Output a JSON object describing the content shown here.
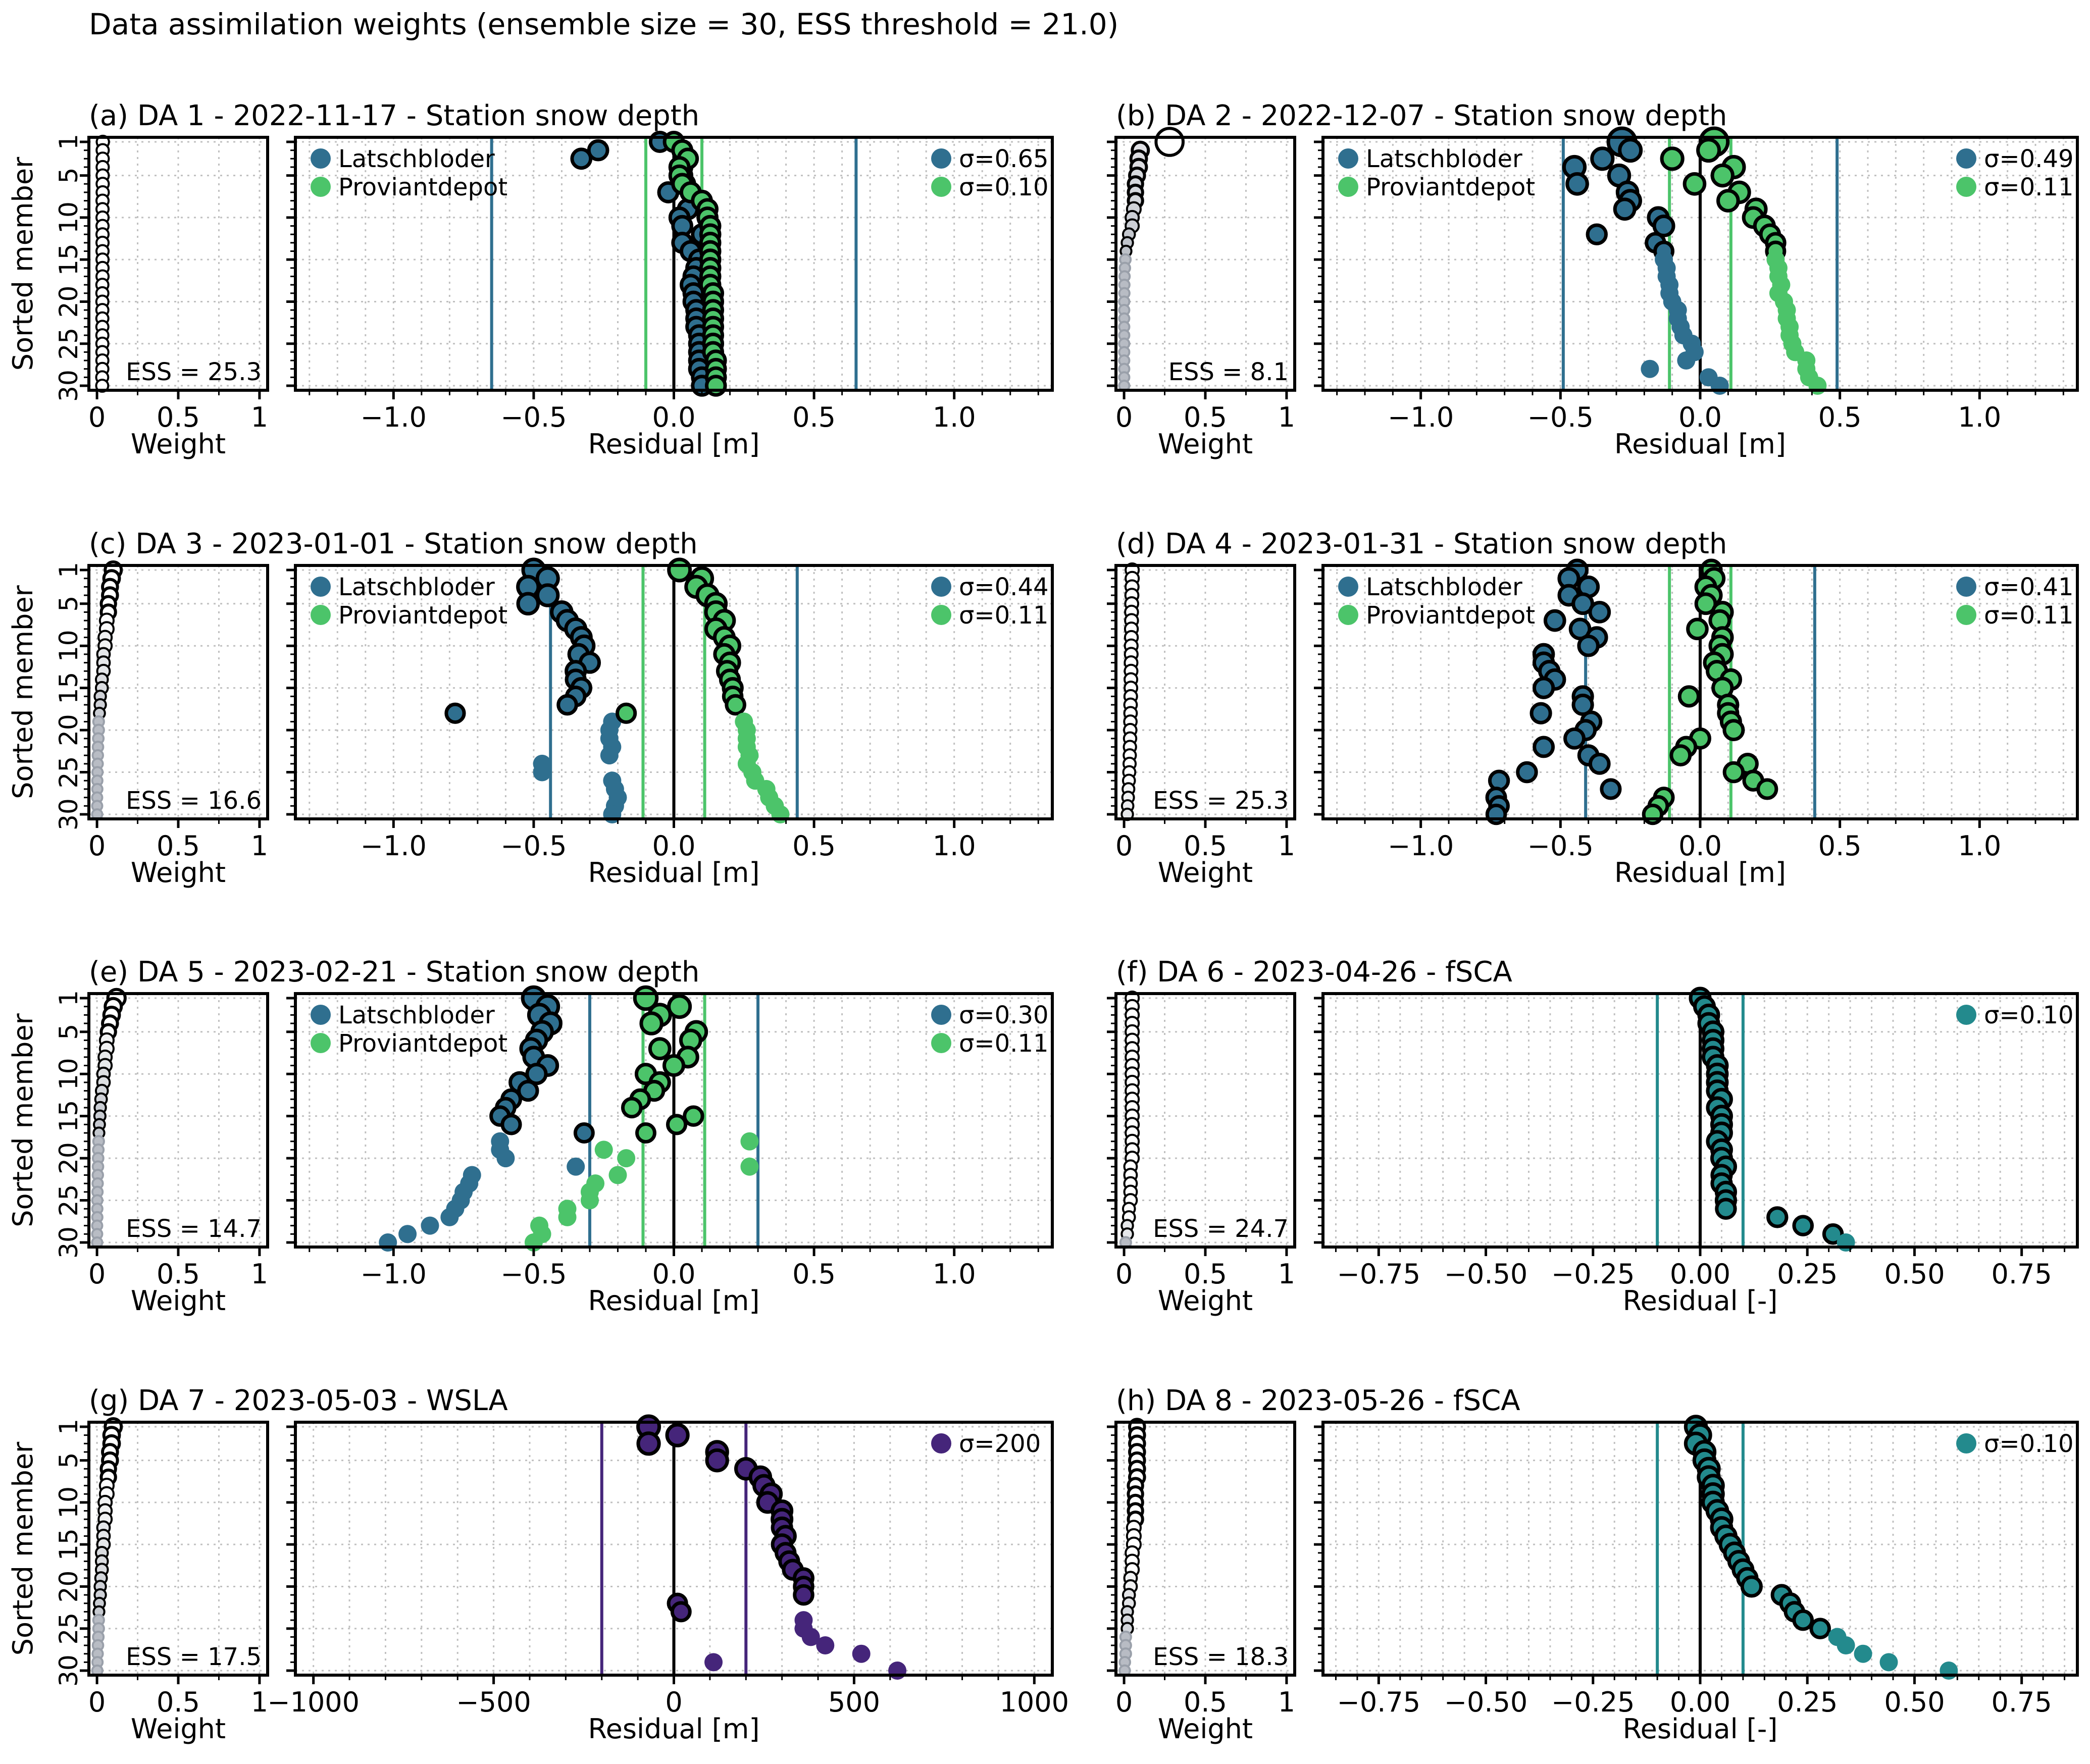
{
  "suptitle": "Data assimilation weights (ensemble size = 30, ESS threshold = 21.0)",
  "common": {
    "ylabel": "Sorted member",
    "weight_xlabel": "Weight",
    "ytick_labels": [
      "1",
      "5",
      "10",
      "15",
      "20",
      "25",
      "30"
    ],
    "weight_tick_labels": [
      "0",
      "0.5",
      "1"
    ]
  },
  "colors": {
    "latschbloder": "#2f6f8f",
    "proviantdepot": "#4cc46a",
    "fsca": "#238a8d",
    "wsla": "#45257a",
    "weight_low": "#b8bcc4",
    "weight_high": "#ffffff",
    "outline": "#000000",
    "grid": "#c0c0c0"
  },
  "chart_data": [
    {
      "type": "scatter",
      "title": "(a) DA 1 - 2022-11-17 - Station snow depth",
      "xlabel": "Residual [m]",
      "ess_label": "ESS = 25.3",
      "xlim": [
        -1.35,
        1.35
      ],
      "xticks": [
        -1.0,
        -0.5,
        0.0,
        0.5,
        1.0
      ],
      "xtick_labels": [
        "−1.0",
        "−0.5",
        "0.0",
        "0.5",
        "1.0"
      ],
      "series": [
        {
          "name": "Latschbloder",
          "sigma_label": "σ=0.65",
          "sigma": 0.65,
          "color_key": "latschbloder",
          "values": [
            -0.05,
            -0.27,
            -0.33,
            0.03,
            0.03,
            0.04,
            -0.02,
            0.07,
            0.05,
            0.02,
            0.03,
            0.1,
            0.03,
            0.06,
            0.09,
            0.08,
            0.07,
            0.06,
            0.07,
            0.07,
            0.08,
            0.08,
            0.08,
            0.09,
            0.09,
            0.09,
            0.09,
            0.09,
            0.1,
            0.1
          ]
        },
        {
          "name": "Proviantdepot",
          "sigma_label": "σ=0.10",
          "sigma": 0.1,
          "color_key": "proviantdepot",
          "values": [
            0.0,
            0.03,
            0.05,
            0.02,
            0.02,
            0.03,
            0.06,
            0.1,
            0.12,
            0.12,
            0.13,
            0.13,
            0.13,
            0.13,
            0.13,
            0.13,
            0.13,
            0.13,
            0.14,
            0.14,
            0.14,
            0.14,
            0.14,
            0.14,
            0.14,
            0.14,
            0.15,
            0.15,
            0.15,
            0.15
          ]
        }
      ],
      "weights": [
        0.036,
        0.035,
        0.035,
        0.035,
        0.035,
        0.035,
        0.035,
        0.034,
        0.034,
        0.034,
        0.034,
        0.034,
        0.034,
        0.034,
        0.034,
        0.034,
        0.034,
        0.033,
        0.033,
        0.033,
        0.033,
        0.033,
        0.033,
        0.033,
        0.033,
        0.033,
        0.033,
        0.033,
        0.032,
        0.032
      ]
    },
    {
      "type": "scatter",
      "title": "(b) DA 2 - 2022-12-07 - Station snow depth",
      "xlabel": "Residual [m]",
      "ess_label": "ESS = 8.1",
      "xlim": [
        -1.35,
        1.35
      ],
      "xticks": [
        -1.0,
        -0.5,
        0.0,
        0.5,
        1.0
      ],
      "xtick_labels": [
        "−1.0",
        "−0.5",
        "0.0",
        "0.5",
        "1.0"
      ],
      "series": [
        {
          "name": "Latschbloder",
          "sigma_label": "σ=0.49",
          "sigma": 0.49,
          "color_key": "latschbloder",
          "values": [
            -0.28,
            -0.25,
            -0.35,
            -0.45,
            -0.29,
            -0.44,
            -0.26,
            -0.25,
            -0.27,
            -0.15,
            -0.13,
            -0.37,
            -0.16,
            -0.13,
            -0.13,
            -0.12,
            -0.12,
            -0.11,
            -0.11,
            -0.1,
            -0.08,
            -0.08,
            -0.07,
            -0.06,
            -0.03,
            -0.02,
            -0.05,
            -0.18,
            0.03,
            0.07
          ]
        },
        {
          "name": "Proviantdepot",
          "sigma_label": "σ=0.11",
          "sigma": 0.11,
          "color_key": "proviantdepot",
          "values": [
            0.05,
            0.03,
            -0.1,
            0.12,
            0.08,
            -0.02,
            0.14,
            0.1,
            0.2,
            0.19,
            0.23,
            0.25,
            0.27,
            0.27,
            0.27,
            0.28,
            0.28,
            0.29,
            0.28,
            0.3,
            0.31,
            0.31,
            0.32,
            0.32,
            0.33,
            0.34,
            0.38,
            0.38,
            0.39,
            0.42
          ]
        }
      ],
      "weights": [
        0.28,
        0.1,
        0.09,
        0.09,
        0.08,
        0.07,
        0.07,
        0.07,
        0.06,
        0.05,
        0.05,
        0.03,
        0.02,
        0.012,
        0.008,
        0.005,
        0.003,
        0.002,
        0.002,
        0.001,
        0.001,
        0.001,
        0.001,
        0.001,
        0.001,
        0.001,
        0.001,
        0.001,
        0.001,
        0.001
      ]
    },
    {
      "type": "scatter",
      "title": "(c) DA 3 - 2023-01-01 - Station snow depth",
      "xlabel": "Residual [m]",
      "ess_label": "ESS = 16.6",
      "xlim": [
        -1.35,
        1.35
      ],
      "xticks": [
        -1.0,
        -0.5,
        0.0,
        0.5,
        1.0
      ],
      "xtick_labels": [
        "−1.0",
        "−0.5",
        "0.0",
        "0.5",
        "1.0"
      ],
      "series": [
        {
          "name": "Latschbloder",
          "sigma_label": "σ=0.44",
          "sigma": 0.44,
          "color_key": "latschbloder",
          "values": [
            -0.5,
            -0.45,
            -0.52,
            -0.45,
            -0.52,
            -0.4,
            -0.38,
            -0.35,
            -0.33,
            -0.32,
            -0.34,
            -0.3,
            -0.35,
            -0.35,
            -0.33,
            -0.35,
            -0.38,
            -0.78,
            -0.22,
            -0.23,
            -0.23,
            -0.22,
            -0.23,
            -0.47,
            -0.47,
            -0.22,
            -0.21,
            -0.2,
            -0.21,
            -0.22
          ]
        },
        {
          "name": "Proviantdepot",
          "sigma_label": "σ=0.11",
          "sigma": 0.11,
          "color_key": "proviantdepot",
          "values": [
            0.02,
            0.1,
            0.08,
            0.12,
            0.15,
            0.15,
            0.18,
            0.15,
            0.18,
            0.2,
            0.18,
            0.2,
            0.19,
            0.2,
            0.21,
            0.21,
            0.22,
            -0.17,
            0.25,
            0.26,
            0.26,
            0.26,
            0.27,
            0.26,
            0.28,
            0.29,
            0.33,
            0.34,
            0.36,
            0.38
          ]
        }
      ],
      "weights": [
        0.1,
        0.09,
        0.08,
        0.08,
        0.07,
        0.07,
        0.06,
        0.06,
        0.05,
        0.05,
        0.04,
        0.04,
        0.04,
        0.03,
        0.03,
        0.02,
        0.02,
        0.015,
        0.01,
        0.01,
        0.008,
        0.006,
        0.005,
        0.004,
        0.003,
        0.002,
        0.002,
        0.001,
        0.001,
        0.001
      ]
    },
    {
      "type": "scatter",
      "title": "(d) DA 4 - 2023-01-31 - Station snow depth",
      "xlabel": "Residual [m]",
      "ess_label": "ESS = 25.3",
      "xlim": [
        -1.35,
        1.35
      ],
      "xticks": [
        -1.0,
        -0.5,
        0.0,
        0.5,
        1.0
      ],
      "xtick_labels": [
        "−1.0",
        "−0.5",
        "0.0",
        "0.5",
        "1.0"
      ],
      "series": [
        {
          "name": "Latschbloder",
          "sigma_label": "σ=0.41",
          "sigma": 0.41,
          "color_key": "latschbloder",
          "values": [
            -0.44,
            -0.47,
            -0.4,
            -0.47,
            -0.42,
            -0.36,
            -0.52,
            -0.43,
            -0.37,
            -0.4,
            -0.56,
            -0.56,
            -0.54,
            -0.52,
            -0.56,
            -0.42,
            -0.42,
            -0.57,
            -0.39,
            -0.41,
            -0.45,
            -0.56,
            -0.4,
            -0.36,
            -0.62,
            -0.72,
            -0.32,
            -0.73,
            -0.72,
            -0.73
          ]
        },
        {
          "name": "Proviantdepot",
          "sigma_label": "σ=0.11",
          "sigma": 0.11,
          "color_key": "proviantdepot",
          "values": [
            0.04,
            0.05,
            0.02,
            0.04,
            0.02,
            0.08,
            0.07,
            -0.01,
            0.08,
            0.07,
            0.08,
            0.05,
            0.06,
            0.11,
            0.08,
            -0.04,
            0.1,
            0.1,
            0.11,
            0.12,
            0.0,
            -0.05,
            -0.07,
            0.17,
            0.12,
            0.19,
            0.24,
            -0.13,
            -0.15,
            -0.17
          ]
        }
      ],
      "weights": [
        0.05,
        0.05,
        0.049,
        0.048,
        0.047,
        0.046,
        0.046,
        0.045,
        0.045,
        0.044,
        0.044,
        0.043,
        0.043,
        0.042,
        0.042,
        0.041,
        0.04,
        0.04,
        0.039,
        0.038,
        0.037,
        0.036,
        0.035,
        0.034,
        0.032,
        0.03,
        0.027,
        0.025,
        0.022,
        0.02
      ]
    },
    {
      "type": "scatter",
      "title": "(e) DA 5 - 2023-02-21 - Station snow depth",
      "xlabel": "Residual [m]",
      "ess_label": "ESS = 14.7",
      "xlim": [
        -1.35,
        1.35
      ],
      "xticks": [
        -1.0,
        -0.5,
        0.0,
        0.5,
        1.0
      ],
      "xtick_labels": [
        "−1.0",
        "−0.5",
        "0.0",
        "0.5",
        "1.0"
      ],
      "series": [
        {
          "name": "Latschbloder",
          "sigma_label": "σ=0.30",
          "sigma": 0.3,
          "color_key": "latschbloder",
          "values": [
            -0.5,
            -0.45,
            -0.48,
            -0.44,
            -0.47,
            -0.49,
            -0.51,
            -0.5,
            -0.45,
            -0.49,
            -0.55,
            -0.52,
            -0.58,
            -0.6,
            -0.62,
            -0.58,
            -0.32,
            -0.62,
            -0.62,
            -0.6,
            -0.35,
            -0.72,
            -0.73,
            -0.75,
            -0.76,
            -0.78,
            -0.8,
            -0.87,
            -0.95,
            -1.02
          ]
        },
        {
          "name": "Proviantdepot",
          "sigma_label": "σ=0.11",
          "sigma": 0.11,
          "color_key": "proviantdepot",
          "values": [
            -0.1,
            0.02,
            -0.05,
            -0.08,
            0.08,
            0.06,
            -0.05,
            0.05,
            0.0,
            -0.1,
            -0.05,
            -0.07,
            -0.12,
            -0.15,
            0.07,
            0.01,
            -0.1,
            0.27,
            -0.25,
            -0.17,
            0.27,
            -0.2,
            -0.28,
            -0.3,
            -0.3,
            -0.38,
            -0.38,
            -0.48,
            -0.47,
            -0.5
          ]
        }
      ],
      "weights": [
        0.12,
        0.1,
        0.09,
        0.08,
        0.07,
        0.06,
        0.06,
        0.05,
        0.05,
        0.04,
        0.04,
        0.03,
        0.025,
        0.02,
        0.018,
        0.015,
        0.012,
        0.01,
        0.008,
        0.007,
        0.006,
        0.005,
        0.004,
        0.003,
        0.002,
        0.002,
        0.002,
        0.001,
        0.001,
        0.001
      ]
    },
    {
      "type": "scatter",
      "title": "(f) DA 6 - 2023-04-26 - fSCA",
      "xlabel": "Residual [-]",
      "ess_label": "ESS = 24.7",
      "xlim": [
        -0.88,
        0.88
      ],
      "xticks": [
        -0.75,
        -0.5,
        -0.25,
        0.0,
        0.25,
        0.5,
        0.75
      ],
      "xtick_labels": [
        "−0.75",
        "−0.50",
        "−0.25",
        "0.00",
        "0.25",
        "0.50",
        "0.75"
      ],
      "series": [
        {
          "name": "",
          "sigma_label": "σ=0.10",
          "sigma": 0.1,
          "color_key": "fsca",
          "values": [
            0.0,
            0.01,
            0.02,
            0.02,
            0.03,
            0.03,
            0.03,
            0.03,
            0.04,
            0.04,
            0.04,
            0.04,
            0.05,
            0.04,
            0.05,
            0.05,
            0.05,
            0.04,
            0.05,
            0.05,
            0.06,
            0.05,
            0.05,
            0.06,
            0.06,
            0.06,
            0.18,
            0.24,
            0.31,
            0.34
          ]
        }
      ],
      "weights": [
        0.05,
        0.05,
        0.05,
        0.05,
        0.05,
        0.05,
        0.05,
        0.05,
        0.05,
        0.05,
        0.05,
        0.05,
        0.05,
        0.05,
        0.05,
        0.05,
        0.05,
        0.05,
        0.05,
        0.05,
        0.04,
        0.04,
        0.04,
        0.04,
        0.04,
        0.03,
        0.03,
        0.02,
        0.02,
        0.01
      ]
    },
    {
      "type": "scatter",
      "title": "(g) DA 7 - 2023-05-03 - WSLA",
      "xlabel": "Residual [m]",
      "ess_label": "ESS = 17.5",
      "xlim": [
        -1050,
        1050
      ],
      "xticks": [
        -1000,
        -500,
        0,
        500,
        1000
      ],
      "xtick_labels": [
        "−1000",
        "−500",
        "0",
        "500",
        "1000"
      ],
      "series": [
        {
          "name": "",
          "sigma_label": "σ=200",
          "sigma": 200,
          "color_key": "wsla",
          "values": [
            -70,
            10,
            -70,
            120,
            120,
            200,
            240,
            250,
            270,
            260,
            300,
            300,
            300,
            310,
            300,
            310,
            320,
            330,
            360,
            360,
            360,
            10,
            20,
            360,
            360,
            380,
            420,
            520,
            110,
            620
          ]
        }
      ],
      "weights": [
        0.1,
        0.09,
        0.09,
        0.08,
        0.08,
        0.07,
        0.07,
        0.06,
        0.06,
        0.05,
        0.05,
        0.05,
        0.04,
        0.04,
        0.04,
        0.03,
        0.03,
        0.03,
        0.025,
        0.02,
        0.02,
        0.015,
        0.012,
        0.01,
        0.01,
        0.008,
        0.006,
        0.004,
        0.003,
        0.002
      ]
    },
    {
      "type": "scatter",
      "title": "(h) DA 8 - 2023-05-26 - fSCA",
      "xlabel": "Residual [-]",
      "ess_label": "ESS = 18.3",
      "xlim": [
        -0.88,
        0.88
      ],
      "xticks": [
        -0.75,
        -0.5,
        -0.25,
        0.0,
        0.25,
        0.5,
        0.75
      ],
      "xtick_labels": [
        "−0.75",
        "−0.50",
        "−0.25",
        "0.00",
        "0.25",
        "0.50",
        "0.75"
      ],
      "series": [
        {
          "name": "",
          "sigma_label": "σ=0.10",
          "sigma": 0.1,
          "color_key": "fsca",
          "values": [
            -0.01,
            0.0,
            -0.01,
            0.01,
            0.01,
            0.02,
            0.02,
            0.03,
            0.03,
            0.03,
            0.04,
            0.05,
            0.05,
            0.06,
            0.07,
            0.08,
            0.09,
            0.1,
            0.11,
            0.12,
            0.19,
            0.21,
            0.22,
            0.24,
            0.28,
            0.32,
            0.34,
            0.38,
            0.44,
            0.58
          ]
        }
      ],
      "weights": [
        0.08,
        0.08,
        0.08,
        0.08,
        0.08,
        0.08,
        0.08,
        0.07,
        0.07,
        0.07,
        0.07,
        0.07,
        0.06,
        0.06,
        0.06,
        0.05,
        0.05,
        0.05,
        0.04,
        0.04,
        0.03,
        0.03,
        0.02,
        0.02,
        0.02,
        0.01,
        0.01,
        0.01,
        0.005,
        0.004
      ]
    }
  ]
}
